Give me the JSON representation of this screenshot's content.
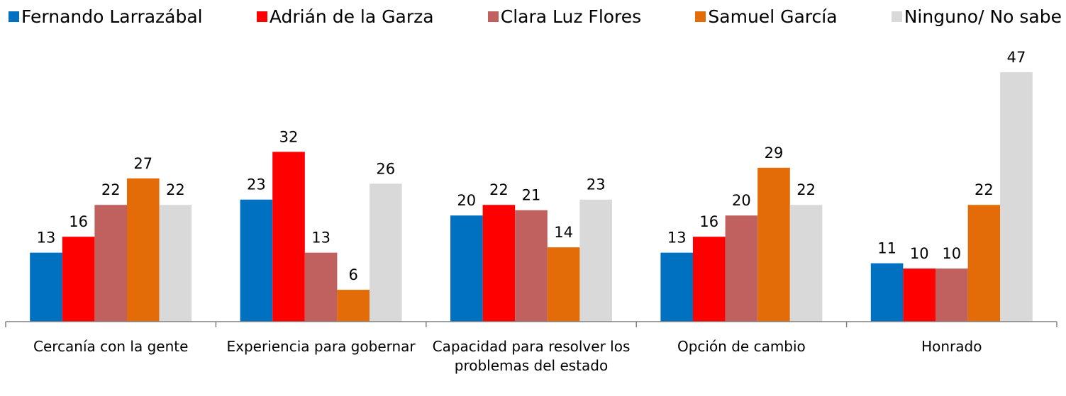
{
  "chart_data": {
    "type": "bar",
    "categories": [
      "Cercanía con la gente",
      "Experiencia para gobernar",
      "Capacidad para resolver los problemas del estado",
      "Opción de cambio",
      "Honrado"
    ],
    "series": [
      {
        "name": "Fernando Larrazábal",
        "color": "#0070c0",
        "values": [
          13,
          23,
          20,
          13,
          11
        ]
      },
      {
        "name": "Adrián de la Garza",
        "color": "#ff0000",
        "values": [
          16,
          32,
          22,
          16,
          10
        ]
      },
      {
        "name": "Clara Luz Flores",
        "color": "#c0605f",
        "values": [
          22,
          13,
          21,
          20,
          10
        ]
      },
      {
        "name": "Samuel García",
        "color": "#e36c09",
        "values": [
          27,
          6,
          14,
          29,
          22
        ]
      },
      {
        "name": "Ninguno/ No sabe",
        "color": "#d9d9d9",
        "values": [
          22,
          26,
          23,
          22,
          47
        ]
      }
    ]
  }
}
